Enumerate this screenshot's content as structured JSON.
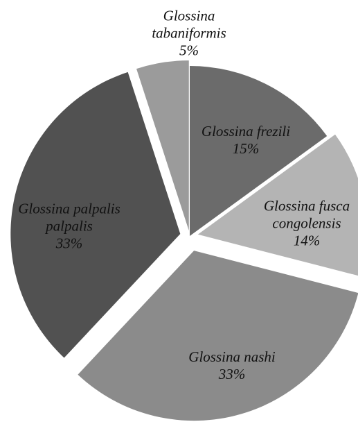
{
  "chart_data": {
    "type": "pie",
    "categories": [
      "Glossina frezili",
      "Glossina fusca congolensis",
      "Glossina nashi",
      "Glossina palpalis palpalis",
      "Glossina tabaniformis"
    ],
    "values": [
      15,
      14,
      33,
      33,
      5
    ],
    "value_labels": [
      "15%",
      "14%",
      "33%",
      "33%",
      "5%"
    ],
    "colors": [
      "#6b6b6b",
      "#b4b4b4",
      "#8b8b8b",
      "#515151",
      "#9b9b9b"
    ]
  }
}
